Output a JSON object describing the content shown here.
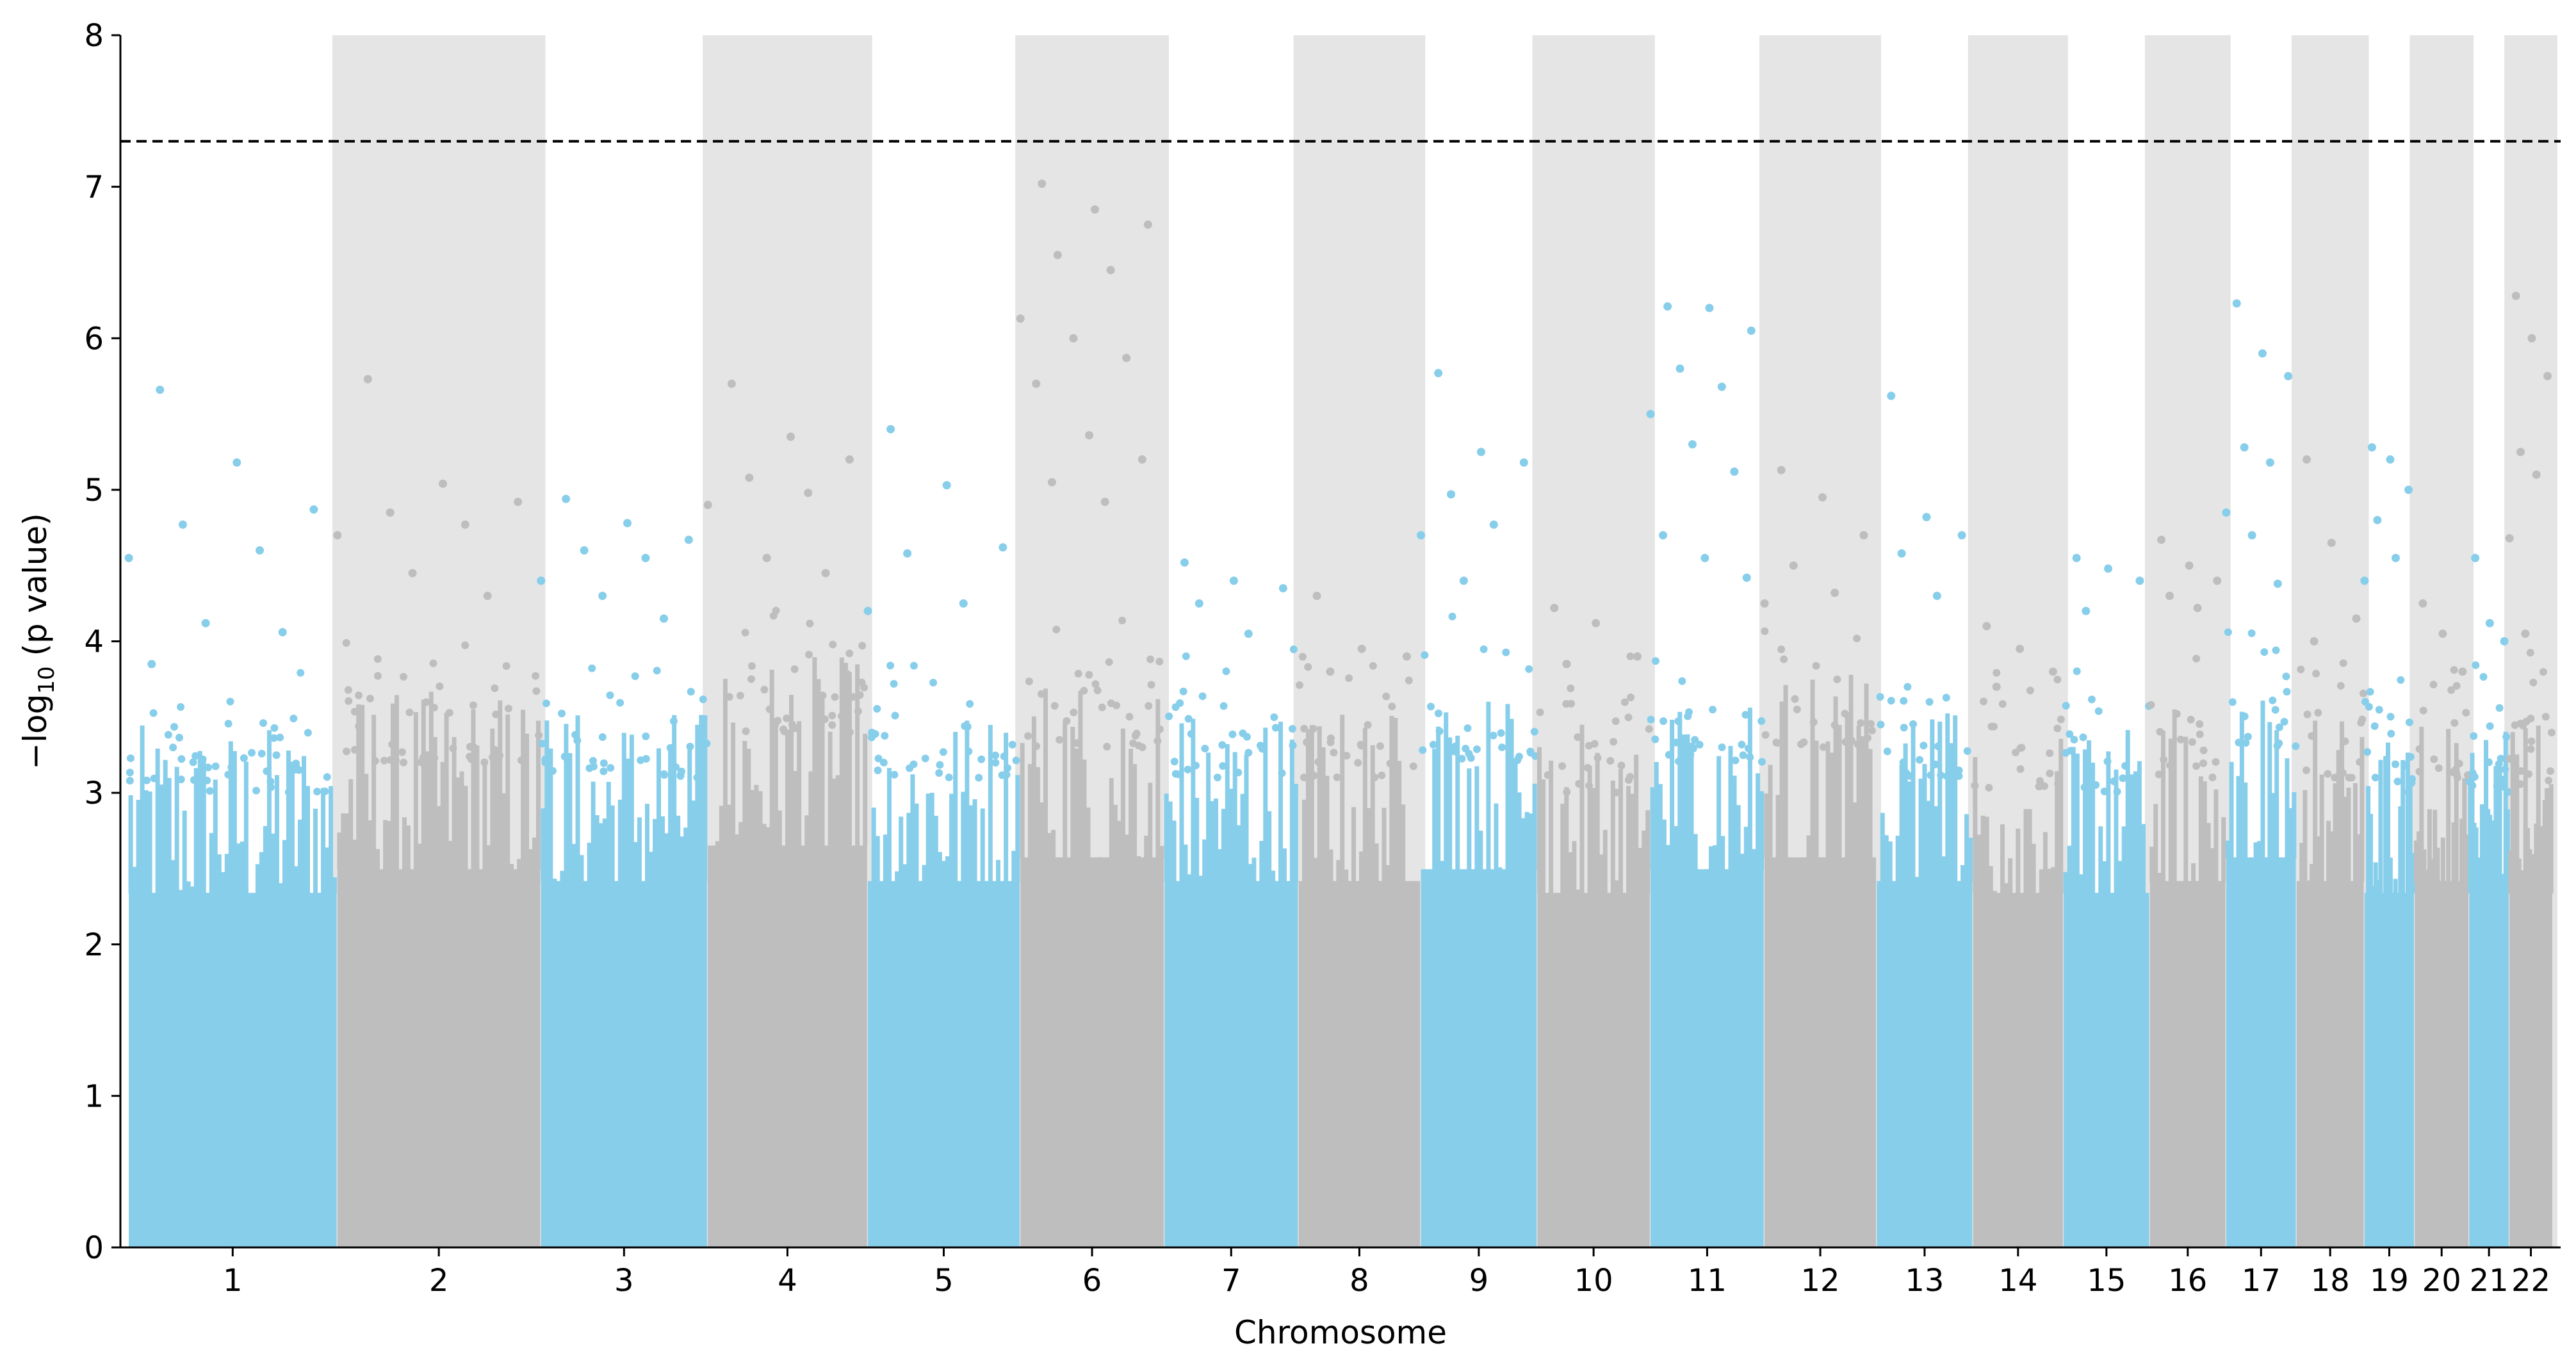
{
  "chart_data": {
    "type": "scatter",
    "subtype": "manhattan",
    "title": "",
    "xlabel": "Chromosome",
    "ylabel": "−log10 (p value)",
    "ylabel_parts": {
      "prefix": "−log",
      "subscript": "10",
      "suffix": " (p value)"
    },
    "ylim": [
      0,
      8
    ],
    "y_ticks": [
      "0",
      "1",
      "2",
      "3",
      "4",
      "5",
      "6",
      "7",
      "8"
    ],
    "significance_threshold": 7.3,
    "threshold_style": "dashed",
    "colors": {
      "odd": "#87ceeb",
      "even": "#bebebe",
      "band": "#e5e5e5",
      "threshold": "#000000"
    },
    "chromosomes": [
      {
        "label": "1",
        "start": 0,
        "end": 248,
        "base_max": 3.0,
        "top_values": [
          5.66,
          5.18,
          4.87,
          4.77,
          4.6,
          4.55,
          4.12,
          4.06,
          3.85
        ]
      },
      {
        "label": "2",
        "start": 249,
        "end": 491,
        "base_max": 3.2,
        "top_values": [
          5.73,
          5.04,
          4.92,
          4.85,
          4.77,
          4.7,
          4.45,
          4.3
        ]
      },
      {
        "label": "3",
        "start": 492,
        "end": 690,
        "base_max": 3.1,
        "top_values": [
          4.94,
          4.78,
          4.67,
          4.6,
          4.55,
          4.4,
          4.3,
          4.15
        ]
      },
      {
        "label": "4",
        "start": 691,
        "end": 881,
        "base_max": 3.4,
        "top_values": [
          5.7,
          5.35,
          5.2,
          5.08,
          4.98,
          4.9,
          4.55,
          4.45
        ]
      },
      {
        "label": "5",
        "start": 882,
        "end": 1063,
        "base_max": 3.1,
        "top_values": [
          5.4,
          5.03,
          4.62,
          4.58,
          4.25,
          4.2
        ]
      },
      {
        "label": "6",
        "start": 1064,
        "end": 1235,
        "base_max": 3.3,
        "top_values": [
          7.02,
          6.85,
          6.75,
          6.55,
          6.45,
          6.13,
          6.0,
          5.87,
          5.7,
          5.36,
          5.2,
          5.05,
          4.92
        ]
      },
      {
        "label": "7",
        "start": 1236,
        "end": 1395,
        "base_max": 3.1,
        "top_values": [
          4.52,
          4.4,
          4.35,
          4.25,
          4.05
        ]
      },
      {
        "label": "8",
        "start": 1396,
        "end": 1541,
        "base_max": 3.1,
        "top_values": [
          4.3,
          3.95,
          3.9,
          3.8
        ]
      },
      {
        "label": "9",
        "start": 1542,
        "end": 1680,
        "base_max": 3.2,
        "top_values": [
          5.77,
          5.25,
          5.18,
          4.97,
          4.77,
          4.7,
          4.4
        ]
      },
      {
        "label": "10",
        "start": 1681,
        "end": 1815,
        "base_max": 3.0,
        "top_values": [
          4.22,
          4.12,
          3.9,
          3.85
        ]
      },
      {
        "label": "11",
        "start": 1816,
        "end": 1951,
        "base_max": 3.2,
        "top_values": [
          6.21,
          6.2,
          6.05,
          5.8,
          5.68,
          5.5,
          5.3,
          5.12,
          4.7,
          4.55,
          4.42
        ]
      },
      {
        "label": "12",
        "start": 1952,
        "end": 2085,
        "base_max": 3.3,
        "top_values": [
          5.13,
          4.95,
          4.7,
          4.5,
          4.32,
          4.25
        ]
      },
      {
        "label": "13",
        "start": 2086,
        "end": 2200,
        "base_max": 3.1,
        "top_values": [
          5.62,
          4.82,
          4.7,
          4.58,
          4.3
        ]
      },
      {
        "label": "14",
        "start": 2201,
        "end": 2308,
        "base_max": 3.0,
        "top_values": [
          4.1,
          3.95,
          3.8,
          3.7
        ]
      },
      {
        "label": "15",
        "start": 2309,
        "end": 2411,
        "base_max": 3.0,
        "top_values": [
          4.55,
          4.48,
          4.4,
          4.2
        ]
      },
      {
        "label": "16",
        "start": 2412,
        "end": 2502,
        "base_max": 3.1,
        "top_values": [
          4.67,
          4.5,
          4.4,
          4.3,
          4.22
        ]
      },
      {
        "label": "17",
        "start": 2503,
        "end": 2586,
        "base_max": 3.3,
        "top_values": [
          6.23,
          5.9,
          5.75,
          5.28,
          5.18,
          4.85,
          4.7,
          4.38
        ]
      },
      {
        "label": "18",
        "start": 2587,
        "end": 2667,
        "base_max": 3.1,
        "top_values": [
          5.2,
          4.65,
          4.15,
          4.0
        ]
      },
      {
        "label": "19",
        "start": 2668,
        "end": 2727,
        "base_max": 3.0,
        "top_values": [
          5.28,
          5.2,
          5.0,
          4.8,
          4.55,
          4.4
        ]
      },
      {
        "label": "20",
        "start": 2728,
        "end": 2792,
        "base_max": 3.1,
        "top_values": [
          4.25,
          4.05,
          3.8
        ]
      },
      {
        "label": "21",
        "start": 2793,
        "end": 2840,
        "base_max": 3.0,
        "top_values": [
          4.55,
          4.12,
          4.0
        ]
      },
      {
        "label": "22",
        "start": 2841,
        "end": 2892,
        "base_max": 3.0,
        "top_values": [
          6.28,
          6.0,
          5.75,
          5.25,
          5.1,
          4.68,
          4.05
        ]
      }
    ]
  }
}
